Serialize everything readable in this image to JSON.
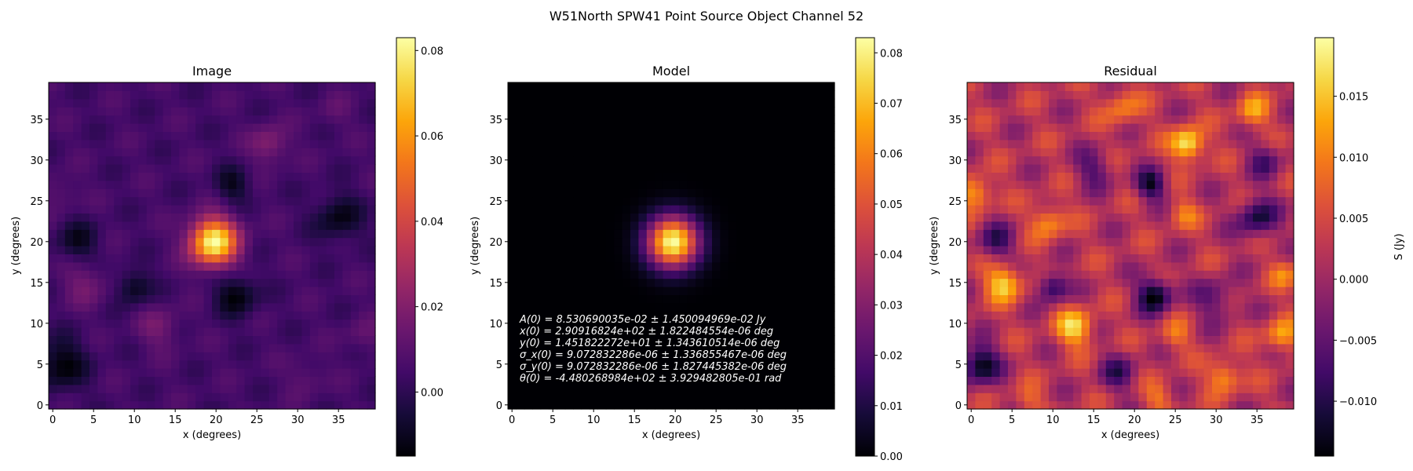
{
  "figure": {
    "suptitle": "W51North SPW41 Point Source Object Channel 52"
  },
  "chart_data": [
    {
      "type": "heatmap",
      "title": "Image",
      "xlabel": "x (degrees)",
      "ylabel": "y (degrees)",
      "xlim": [
        -0.5,
        39.5
      ],
      "ylim": [
        -0.5,
        39.5
      ],
      "xticks": [
        "0",
        "5",
        "10",
        "15",
        "20",
        "25",
        "30",
        "35"
      ],
      "yticks": [
        "0",
        "5",
        "10",
        "15",
        "20",
        "25",
        "30",
        "35"
      ],
      "colormap": "inferno",
      "grid": [
        40,
        40
      ],
      "vmin": -0.015,
      "vmax": 0.083,
      "colorbar_ticks": [
        "0.00",
        "0.02",
        "0.04",
        "0.06",
        "0.08"
      ],
      "colorbar_label": "",
      "features": [
        {
          "x": 19.7,
          "y": 20.0,
          "value": 0.083,
          "sigma": 2.0
        },
        {
          "x": 26.5,
          "y": 32.0,
          "value": 0.021,
          "sigma": 1.6
        },
        {
          "x": 4.0,
          "y": 15.0,
          "value": 0.016,
          "sigma": 2.0
        },
        {
          "x": 13.0,
          "y": 9.5,
          "value": 0.016,
          "sigma": 1.8
        },
        {
          "x": 1.0,
          "y": 26.0,
          "value": 0.012,
          "sigma": 1.5
        },
        {
          "x": 38.0,
          "y": 8.5,
          "value": 0.012,
          "sigma": 1.5
        },
        {
          "x": 31.0,
          "y": 3.5,
          "value": 0.012,
          "sigma": 1.5
        },
        {
          "x": 34.5,
          "y": 36.0,
          "value": 0.01,
          "sigma": 1.5
        },
        {
          "x": 1.0,
          "y": 5.0,
          "value": -0.015,
          "sigma": 2.2
        },
        {
          "x": 22.5,
          "y": 13.5,
          "value": -0.014,
          "sigma": 1.8
        },
        {
          "x": 10.0,
          "y": 14.5,
          "value": -0.012,
          "sigma": 1.5
        },
        {
          "x": 35.0,
          "y": 23.0,
          "value": -0.012,
          "sigma": 2.0
        },
        {
          "x": 22.0,
          "y": 27.0,
          "value": -0.01,
          "sigma": 1.5
        },
        {
          "x": 3.0,
          "y": 20.0,
          "value": -0.01,
          "sigma": 1.8
        }
      ]
    },
    {
      "type": "heatmap",
      "title": "Model",
      "xlabel": "x (degrees)",
      "ylabel": "y (degrees)",
      "xlim": [
        -0.5,
        39.5
      ],
      "ylim": [
        -0.5,
        39.5
      ],
      "xticks": [
        "0",
        "5",
        "10",
        "15",
        "20",
        "25",
        "30",
        "35"
      ],
      "yticks": [
        "0",
        "5",
        "10",
        "15",
        "20",
        "25",
        "30",
        "35"
      ],
      "colormap": "inferno",
      "grid": [
        40,
        40
      ],
      "vmin": 0.0,
      "vmax": 0.083,
      "colorbar_ticks": [
        "0.00",
        "0.01",
        "0.02",
        "0.03",
        "0.04",
        "0.05",
        "0.06",
        "0.07",
        "0.08"
      ],
      "colorbar_label": "",
      "features": [
        {
          "x": 19.7,
          "y": 20.0,
          "value": 0.083,
          "sigma": 2.2
        }
      ],
      "annotation": [
        "A(0) = 8.530690035e-02 ± 1.450094969e-02 Jy",
        "x(0) = 2.90916824e+02 ± 1.822484554e-06 deg",
        "y(0) = 1.451822272e+01 ± 1.343610514e-06 deg",
        "σ_x(0) = 9.072832286e-06 ± 1.336855467e-06 deg",
        "σ_y(0) = 9.072832286e-06 ± 1.827445382e-06 deg",
        "θ(0) = -4.480268984e+02 ± 3.929482805e-01 rad"
      ]
    },
    {
      "type": "heatmap",
      "title": "Residual",
      "xlabel": "x (degrees)",
      "ylabel": "y (degrees)",
      "xlim": [
        -0.5,
        39.5
      ],
      "ylim": [
        -0.5,
        39.5
      ],
      "xticks": [
        "0",
        "5",
        "10",
        "15",
        "20",
        "25",
        "30",
        "35"
      ],
      "yticks": [
        "0",
        "5",
        "10",
        "15",
        "20",
        "25",
        "30",
        "35"
      ],
      "colormap": "inferno",
      "grid": [
        40,
        40
      ],
      "vmin": -0.0145,
      "vmax": 0.0198,
      "colorbar_ticks": [
        "−0.010",
        "−0.005",
        "0.000",
        "0.005",
        "0.010",
        "0.015"
      ],
      "colorbar_label": "S (Jy)",
      "base": 0.002,
      "features": [
        {
          "x": 26.5,
          "y": 32.0,
          "value": 0.0198,
          "sigma": 1.4
        },
        {
          "x": 4.0,
          "y": 15.0,
          "value": 0.016,
          "sigma": 1.6
        },
        {
          "x": 12.7,
          "y": 9.5,
          "value": 0.016,
          "sigma": 1.6
        },
        {
          "x": 0.5,
          "y": 26.0,
          "value": 0.014,
          "sigma": 1.4
        },
        {
          "x": 9.5,
          "y": 22.5,
          "value": 0.012,
          "sigma": 1.5
        },
        {
          "x": 38.0,
          "y": 8.5,
          "value": 0.013,
          "sigma": 1.4
        },
        {
          "x": 31.0,
          "y": 3.5,
          "value": 0.013,
          "sigma": 1.4
        },
        {
          "x": 34.5,
          "y": 36.0,
          "value": 0.012,
          "sigma": 1.4
        },
        {
          "x": 18.5,
          "y": 36.5,
          "value": 0.01,
          "sigma": 1.6
        },
        {
          "x": 26.0,
          "y": 23.5,
          "value": 0.009,
          "sigma": 1.3
        },
        {
          "x": 23.0,
          "y": 1.0,
          "value": 0.009,
          "sigma": 1.3
        },
        {
          "x": 25.0,
          "y": 8.5,
          "value": 0.009,
          "sigma": 1.3
        },
        {
          "x": 38.5,
          "y": 16.0,
          "value": 0.009,
          "sigma": 1.3
        },
        {
          "x": 7.0,
          "y": 0.5,
          "value": 0.008,
          "sigma": 1.3
        },
        {
          "x": 22.5,
          "y": 13.5,
          "value": -0.0145,
          "sigma": 1.5
        },
        {
          "x": 1.0,
          "y": 5.0,
          "value": -0.014,
          "sigma": 1.7
        },
        {
          "x": 10.0,
          "y": 14.5,
          "value": -0.011,
          "sigma": 1.3
        },
        {
          "x": 22.0,
          "y": 27.0,
          "value": -0.012,
          "sigma": 1.3
        },
        {
          "x": 35.0,
          "y": 23.0,
          "value": -0.011,
          "sigma": 1.7
        },
        {
          "x": 3.0,
          "y": 20.0,
          "value": -0.008,
          "sigma": 1.6
        },
        {
          "x": 30.0,
          "y": 13.0,
          "value": -0.006,
          "sigma": 1.8
        },
        {
          "x": 15.0,
          "y": 29.0,
          "value": -0.006,
          "sigma": 1.6
        },
        {
          "x": 36.0,
          "y": 30.0,
          "value": -0.006,
          "sigma": 1.5
        },
        {
          "x": 18.0,
          "y": 4.0,
          "value": -0.007,
          "sigma": 1.6
        }
      ]
    }
  ]
}
